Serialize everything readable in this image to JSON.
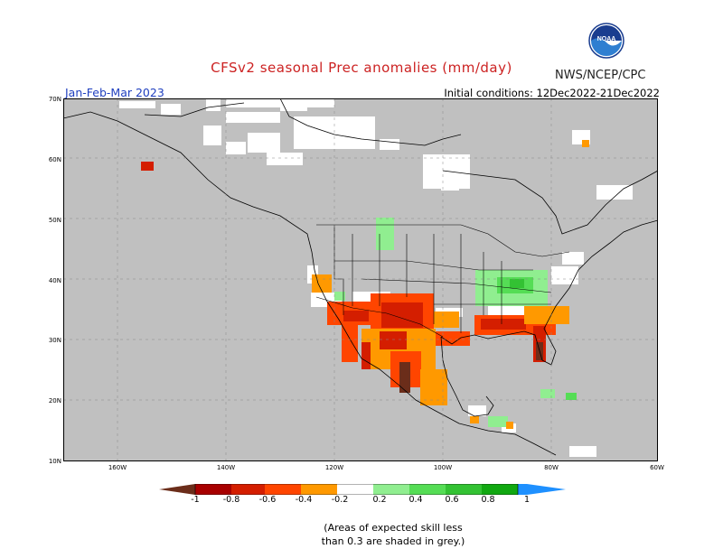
{
  "header": {
    "title": "CFSv2 seasonal Prec anomalies (mm/day)",
    "agency": "NWS/NCEP/CPC",
    "season": "Jan-Feb-Mar 2023",
    "initial_conditions": "Initial conditions: 12Dec2022-21Dec2022",
    "logo_text": "NOAA"
  },
  "map": {
    "lat_labels": [
      "70N",
      "60N",
      "50N",
      "40N",
      "30N",
      "20N",
      "10N"
    ],
    "lon_labels": [
      "160W",
      "140W",
      "120W",
      "100W",
      "80W",
      "60W"
    ]
  },
  "legend": {
    "colors": [
      "#6b2d1a",
      "#a80000",
      "#d41e00",
      "#ff4500",
      "#ff9900",
      "#ffffff",
      "#90ee90",
      "#55dd55",
      "#33c233",
      "#11a811",
      "#1e90ff"
    ],
    "tick_labels": [
      "-1",
      "-0.8",
      "-0.6",
      "-0.4",
      "-0.2",
      "0.2",
      "0.4",
      "0.6",
      "0.8",
      "1"
    ]
  },
  "note": {
    "line1": "(Areas of expected skill less",
    "line2": "than 0.3 are shaded in grey.)"
  },
  "colors": {
    "unskilled": "#c0c0c0",
    "title": "#cc2222",
    "season": "#1f3fbf"
  }
}
